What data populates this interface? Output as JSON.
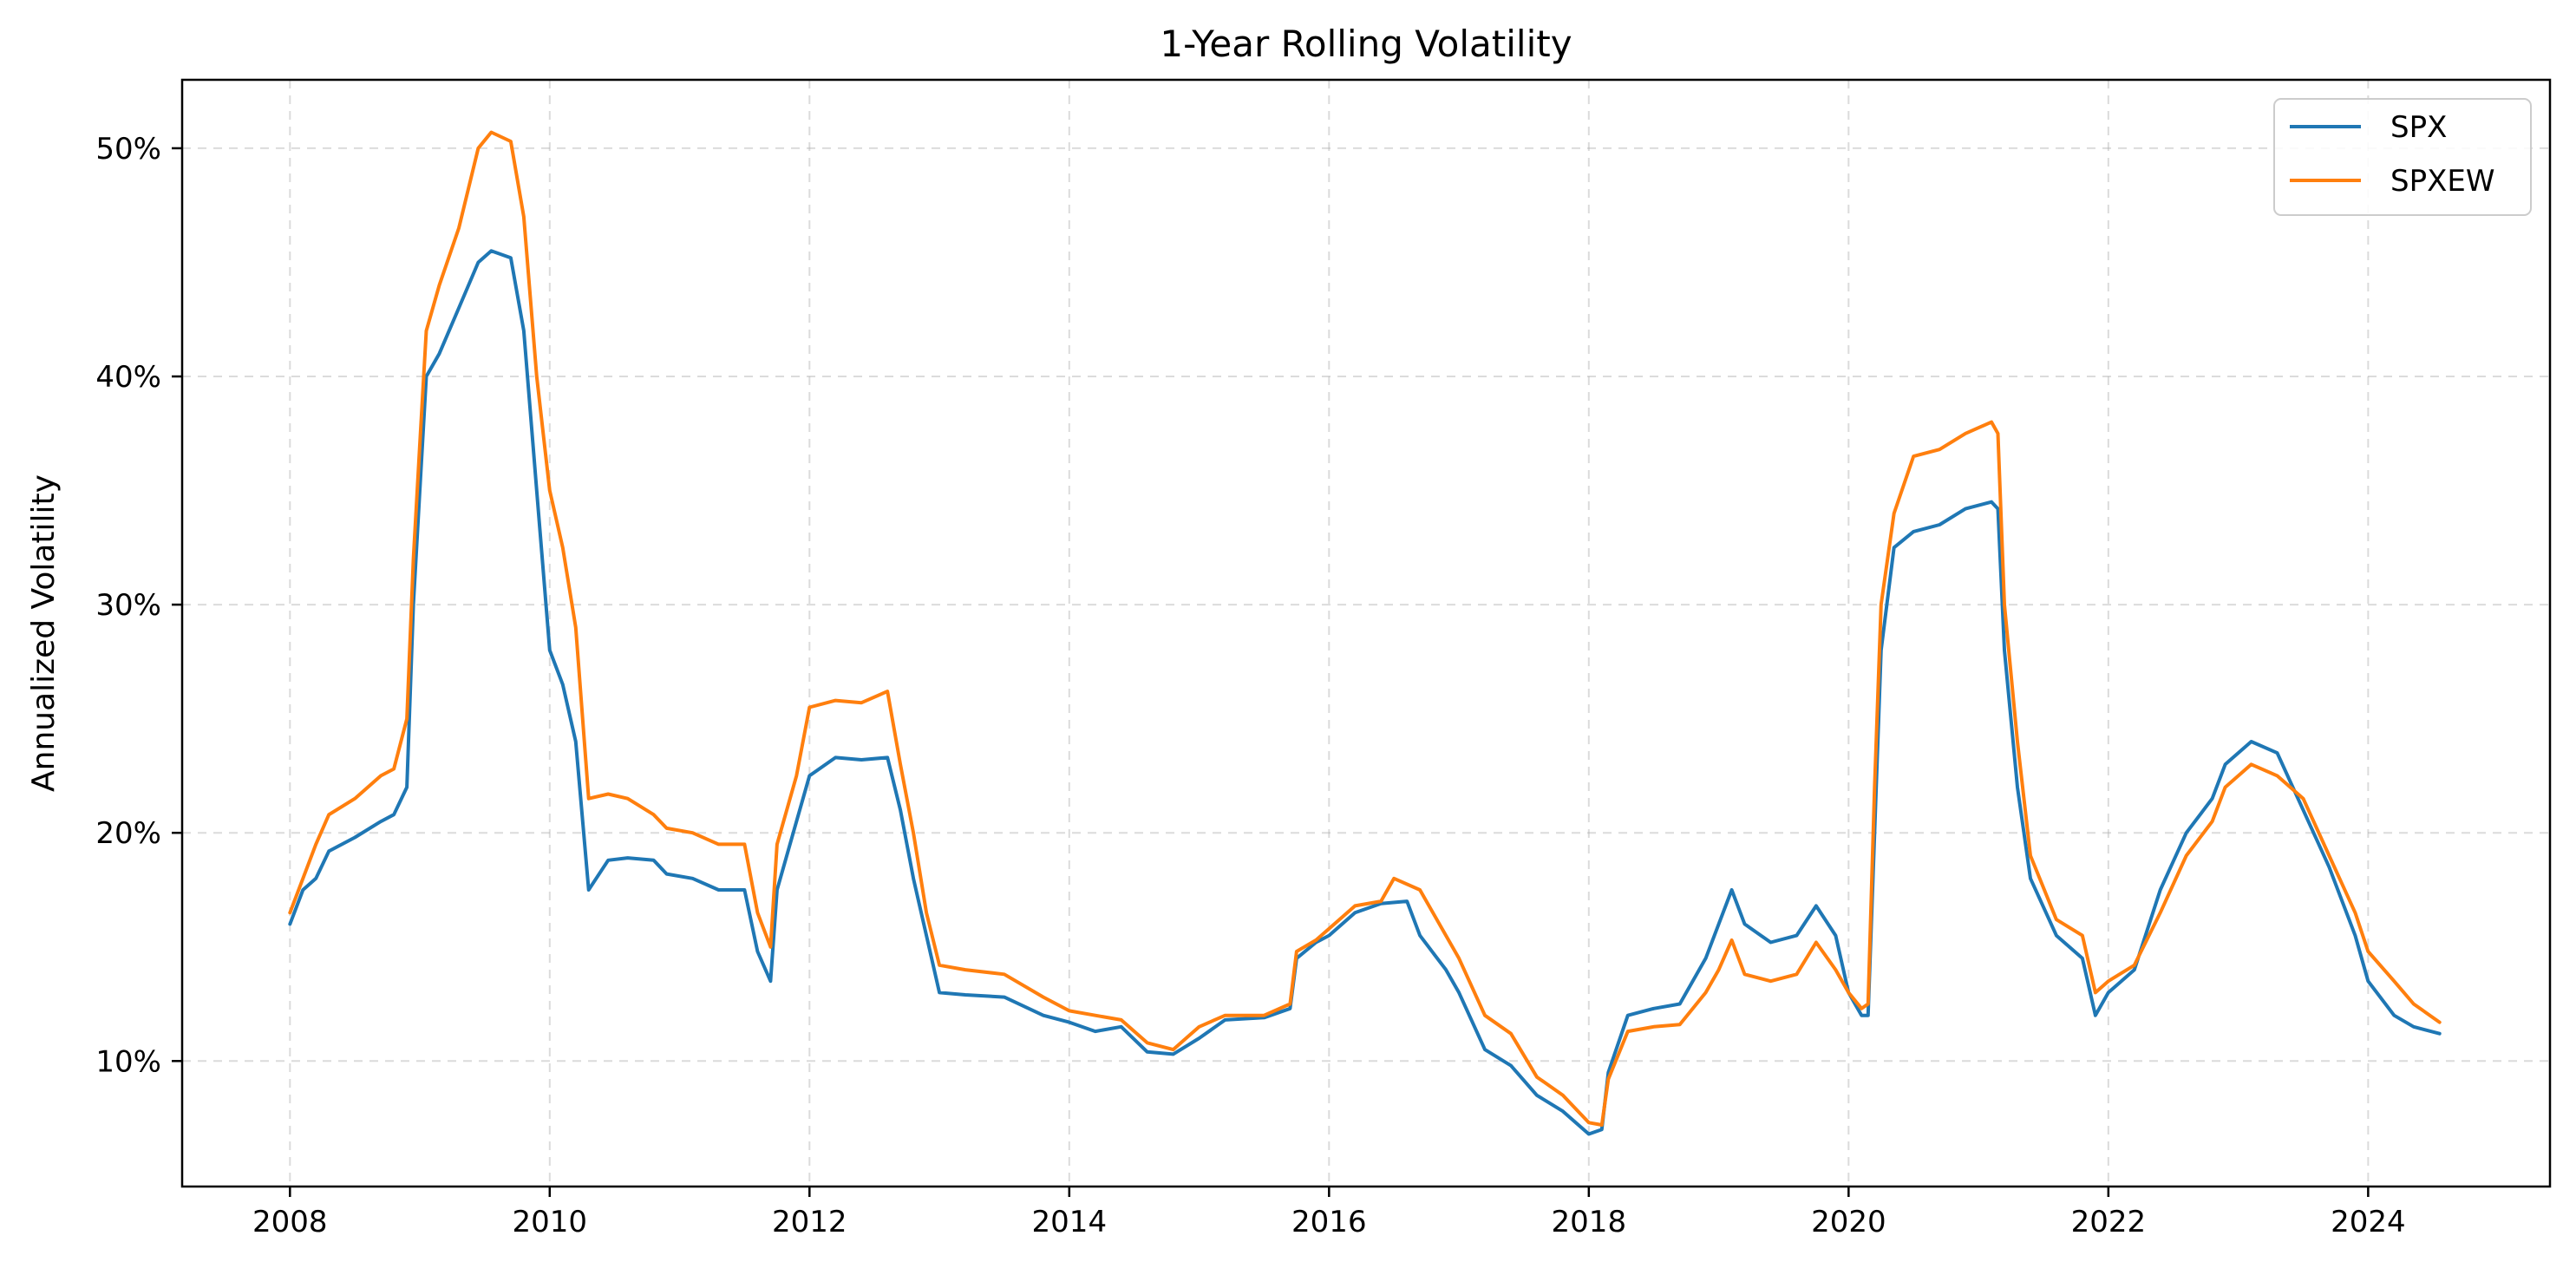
{
  "chart_data": {
    "type": "line",
    "title": "1-Year Rolling Volatility",
    "xlabel": "",
    "ylabel": "Annualized Volatility",
    "xlim": [
      2007.17,
      2025.4
    ],
    "ylim": [
      4.5,
      53.0
    ],
    "x_ticks": [
      2008,
      2010,
      2012,
      2014,
      2016,
      2018,
      2020,
      2022,
      2024
    ],
    "x_tick_labels": [
      "2008",
      "2010",
      "2012",
      "2014",
      "2016",
      "2018",
      "2020",
      "2022",
      "2024"
    ],
    "y_ticks": [
      10,
      20,
      30,
      40,
      50
    ],
    "y_tick_labels": [
      "10%",
      "20%",
      "30%",
      "40%",
      "50%"
    ],
    "grid": true,
    "legend_position": "top-right",
    "series": [
      {
        "name": "SPX",
        "color": "#1f77b4",
        "points": [
          [
            2008.0,
            16.0
          ],
          [
            2008.1,
            17.5
          ],
          [
            2008.2,
            18.0
          ],
          [
            2008.3,
            19.2
          ],
          [
            2008.5,
            19.8
          ],
          [
            2008.7,
            20.5
          ],
          [
            2008.8,
            20.8
          ],
          [
            2008.9,
            22.0
          ],
          [
            2008.95,
            30.0
          ],
          [
            2009.0,
            35.0
          ],
          [
            2009.05,
            40.0
          ],
          [
            2009.15,
            41.0
          ],
          [
            2009.3,
            43.0
          ],
          [
            2009.45,
            45.0
          ],
          [
            2009.55,
            45.5
          ],
          [
            2009.7,
            45.2
          ],
          [
            2009.8,
            42.0
          ],
          [
            2009.9,
            35.0
          ],
          [
            2010.0,
            28.0
          ],
          [
            2010.1,
            26.5
          ],
          [
            2010.2,
            24.0
          ],
          [
            2010.3,
            17.5
          ],
          [
            2010.45,
            18.8
          ],
          [
            2010.6,
            18.9
          ],
          [
            2010.8,
            18.8
          ],
          [
            2010.9,
            18.2
          ],
          [
            2011.1,
            18.0
          ],
          [
            2011.3,
            17.5
          ],
          [
            2011.5,
            17.5
          ],
          [
            2011.6,
            14.8
          ],
          [
            2011.7,
            13.5
          ],
          [
            2011.75,
            17.5
          ],
          [
            2011.9,
            20.5
          ],
          [
            2012.0,
            22.5
          ],
          [
            2012.2,
            23.3
          ],
          [
            2012.4,
            23.2
          ],
          [
            2012.6,
            23.3
          ],
          [
            2012.7,
            21.0
          ],
          [
            2012.8,
            18.0
          ],
          [
            2012.9,
            15.5
          ],
          [
            2013.0,
            13.0
          ],
          [
            2013.2,
            12.9
          ],
          [
            2013.5,
            12.8
          ],
          [
            2013.8,
            12.0
          ],
          [
            2014.0,
            11.7
          ],
          [
            2014.2,
            11.3
          ],
          [
            2014.4,
            11.5
          ],
          [
            2014.6,
            10.4
          ],
          [
            2014.8,
            10.3
          ],
          [
            2015.0,
            11.0
          ],
          [
            2015.2,
            11.8
          ],
          [
            2015.5,
            11.9
          ],
          [
            2015.7,
            12.3
          ],
          [
            2015.75,
            14.5
          ],
          [
            2015.9,
            15.2
          ],
          [
            2016.0,
            15.5
          ],
          [
            2016.2,
            16.5
          ],
          [
            2016.4,
            16.9
          ],
          [
            2016.6,
            17.0
          ],
          [
            2016.7,
            15.5
          ],
          [
            2016.9,
            14.0
          ],
          [
            2017.0,
            13.0
          ],
          [
            2017.2,
            10.5
          ],
          [
            2017.4,
            9.8
          ],
          [
            2017.6,
            8.5
          ],
          [
            2017.8,
            7.8
          ],
          [
            2018.0,
            6.8
          ],
          [
            2018.1,
            7.0
          ],
          [
            2018.15,
            9.5
          ],
          [
            2018.3,
            12.0
          ],
          [
            2018.5,
            12.3
          ],
          [
            2018.7,
            12.5
          ],
          [
            2018.9,
            14.5
          ],
          [
            2019.0,
            16.0
          ],
          [
            2019.1,
            17.5
          ],
          [
            2019.2,
            16.0
          ],
          [
            2019.4,
            15.2
          ],
          [
            2019.6,
            15.5
          ],
          [
            2019.75,
            16.8
          ],
          [
            2019.9,
            15.5
          ],
          [
            2020.0,
            13.0
          ],
          [
            2020.1,
            12.0
          ],
          [
            2020.15,
            12.0
          ],
          [
            2020.2,
            20.0
          ],
          [
            2020.25,
            28.0
          ],
          [
            2020.35,
            32.5
          ],
          [
            2020.5,
            33.2
          ],
          [
            2020.7,
            33.5
          ],
          [
            2020.9,
            34.2
          ],
          [
            2021.1,
            34.5
          ],
          [
            2021.15,
            34.2
          ],
          [
            2021.2,
            28.0
          ],
          [
            2021.3,
            22.0
          ],
          [
            2021.4,
            18.0
          ],
          [
            2021.6,
            15.5
          ],
          [
            2021.8,
            14.5
          ],
          [
            2021.9,
            12.0
          ],
          [
            2022.0,
            13.0
          ],
          [
            2022.2,
            14.0
          ],
          [
            2022.4,
            17.5
          ],
          [
            2022.6,
            20.0
          ],
          [
            2022.8,
            21.5
          ],
          [
            2022.9,
            23.0
          ],
          [
            2023.1,
            24.0
          ],
          [
            2023.3,
            23.5
          ],
          [
            2023.5,
            21.0
          ],
          [
            2023.7,
            18.5
          ],
          [
            2023.9,
            15.5
          ],
          [
            2024.0,
            13.5
          ],
          [
            2024.2,
            12.0
          ],
          [
            2024.35,
            11.5
          ],
          [
            2024.55,
            11.2
          ]
        ]
      },
      {
        "name": "SPXEW",
        "color": "#ff7f0e",
        "points": [
          [
            2008.0,
            16.5
          ],
          [
            2008.1,
            18.0
          ],
          [
            2008.2,
            19.5
          ],
          [
            2008.3,
            20.8
          ],
          [
            2008.5,
            21.5
          ],
          [
            2008.7,
            22.5
          ],
          [
            2008.8,
            22.8
          ],
          [
            2008.9,
            25.0
          ],
          [
            2008.95,
            32.0
          ],
          [
            2009.0,
            37.0
          ],
          [
            2009.05,
            42.0
          ],
          [
            2009.15,
            44.0
          ],
          [
            2009.3,
            46.5
          ],
          [
            2009.45,
            50.0
          ],
          [
            2009.55,
            50.7
          ],
          [
            2009.7,
            50.3
          ],
          [
            2009.8,
            47.0
          ],
          [
            2009.9,
            40.0
          ],
          [
            2010.0,
            35.0
          ],
          [
            2010.1,
            32.5
          ],
          [
            2010.2,
            29.0
          ],
          [
            2010.3,
            21.5
          ],
          [
            2010.45,
            21.7
          ],
          [
            2010.6,
            21.5
          ],
          [
            2010.8,
            20.8
          ],
          [
            2010.9,
            20.2
          ],
          [
            2011.1,
            20.0
          ],
          [
            2011.3,
            19.5
          ],
          [
            2011.5,
            19.5
          ],
          [
            2011.6,
            16.5
          ],
          [
            2011.7,
            15.0
          ],
          [
            2011.75,
            19.5
          ],
          [
            2011.9,
            22.5
          ],
          [
            2012.0,
            25.5
          ],
          [
            2012.2,
            25.8
          ],
          [
            2012.4,
            25.7
          ],
          [
            2012.6,
            26.2
          ],
          [
            2012.7,
            23.0
          ],
          [
            2012.8,
            20.0
          ],
          [
            2012.9,
            16.5
          ],
          [
            2013.0,
            14.2
          ],
          [
            2013.2,
            14.0
          ],
          [
            2013.5,
            13.8
          ],
          [
            2013.8,
            12.8
          ],
          [
            2014.0,
            12.2
          ],
          [
            2014.2,
            12.0
          ],
          [
            2014.4,
            11.8
          ],
          [
            2014.6,
            10.8
          ],
          [
            2014.8,
            10.5
          ],
          [
            2015.0,
            11.5
          ],
          [
            2015.2,
            12.0
          ],
          [
            2015.5,
            12.0
          ],
          [
            2015.7,
            12.5
          ],
          [
            2015.75,
            14.8
          ],
          [
            2015.9,
            15.3
          ],
          [
            2016.0,
            15.8
          ],
          [
            2016.2,
            16.8
          ],
          [
            2016.4,
            17.0
          ],
          [
            2016.5,
            18.0
          ],
          [
            2016.7,
            17.5
          ],
          [
            2016.9,
            15.5
          ],
          [
            2017.0,
            14.5
          ],
          [
            2017.2,
            12.0
          ],
          [
            2017.4,
            11.2
          ],
          [
            2017.6,
            9.3
          ],
          [
            2017.8,
            8.5
          ],
          [
            2018.0,
            7.3
          ],
          [
            2018.1,
            7.2
          ],
          [
            2018.15,
            9.2
          ],
          [
            2018.3,
            11.3
          ],
          [
            2018.5,
            11.5
          ],
          [
            2018.7,
            11.6
          ],
          [
            2018.9,
            13.0
          ],
          [
            2019.0,
            14.0
          ],
          [
            2019.1,
            15.3
          ],
          [
            2019.2,
            13.8
          ],
          [
            2019.4,
            13.5
          ],
          [
            2019.6,
            13.8
          ],
          [
            2019.75,
            15.2
          ],
          [
            2019.9,
            14.0
          ],
          [
            2020.0,
            13.0
          ],
          [
            2020.1,
            12.3
          ],
          [
            2020.15,
            12.5
          ],
          [
            2020.2,
            22.0
          ],
          [
            2020.25,
            30.0
          ],
          [
            2020.35,
            34.0
          ],
          [
            2020.5,
            36.5
          ],
          [
            2020.7,
            36.8
          ],
          [
            2020.9,
            37.5
          ],
          [
            2021.1,
            38.0
          ],
          [
            2021.15,
            37.5
          ],
          [
            2021.2,
            30.0
          ],
          [
            2021.3,
            24.0
          ],
          [
            2021.4,
            19.0
          ],
          [
            2021.6,
            16.2
          ],
          [
            2021.8,
            15.5
          ],
          [
            2021.9,
            13.0
          ],
          [
            2022.0,
            13.5
          ],
          [
            2022.2,
            14.2
          ],
          [
            2022.4,
            16.5
          ],
          [
            2022.6,
            19.0
          ],
          [
            2022.8,
            20.5
          ],
          [
            2022.9,
            22.0
          ],
          [
            2023.1,
            23.0
          ],
          [
            2023.3,
            22.5
          ],
          [
            2023.5,
            21.5
          ],
          [
            2023.7,
            19.0
          ],
          [
            2023.9,
            16.5
          ],
          [
            2024.0,
            14.8
          ],
          [
            2024.2,
            13.5
          ],
          [
            2024.35,
            12.5
          ],
          [
            2024.55,
            11.7
          ]
        ]
      }
    ]
  }
}
